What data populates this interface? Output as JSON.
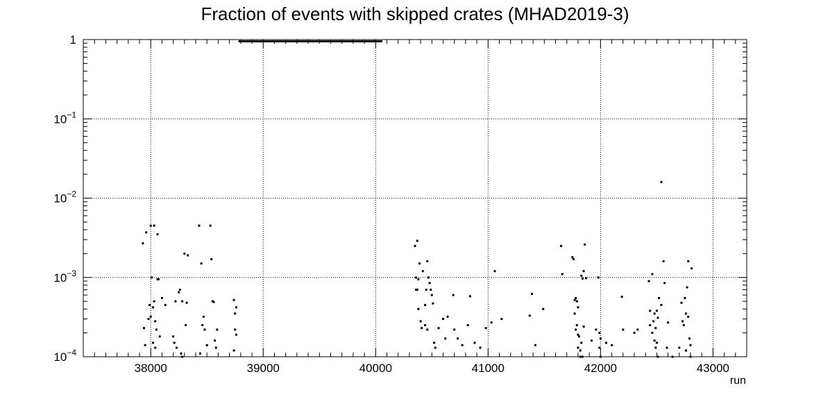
{
  "chart_data": {
    "type": "scatter",
    "title": "Fraction of events with skipped crates (MHAD2019-3)",
    "xlabel": "run",
    "ylabel": "",
    "xlim": [
      37400,
      43300
    ],
    "ylim": [
      0.0001,
      1
    ],
    "yscale": "log",
    "grid": true,
    "legend": "none",
    "xticks": [
      38000,
      39000,
      40000,
      41000,
      42000,
      43000
    ],
    "xtick_labels": [
      "38000",
      "39000",
      "40000",
      "41000",
      "42000",
      "43000"
    ],
    "yticks": [
      {
        "value": 1,
        "base": "1",
        "exp": ""
      },
      {
        "value": 0.1,
        "base": "10",
        "exp": "−1"
      },
      {
        "value": 0.01,
        "base": "10",
        "exp": "−2"
      },
      {
        "value": 0.001,
        "base": "10",
        "exp": "−3"
      },
      {
        "value": 0.0001,
        "base": "10",
        "exp": "−4"
      }
    ],
    "saturated_band": {
      "x_start": 38780,
      "x_end": 40060,
      "y": 0.95
    },
    "points": [
      [
        37930,
        0.0027
      ],
      [
        37960,
        0.0037
      ],
      [
        38000,
        0.0045
      ],
      [
        38030,
        0.0045
      ],
      [
        38060,
        0.0035
      ],
      [
        37940,
        0.00023
      ],
      [
        37950,
        0.00014
      ],
      [
        37980,
        0.0003
      ],
      [
        37990,
        0.00045
      ],
      [
        38000,
        0.00032
      ],
      [
        38010,
        0.001
      ],
      [
        38020,
        0.00042
      ],
      [
        38030,
        0.0005
      ],
      [
        38040,
        0.00028
      ],
      [
        38050,
        0.00022
      ],
      [
        38060,
        0.00095
      ],
      [
        38070,
        0.00095
      ],
      [
        38080,
        0.00018
      ],
      [
        38020,
        0.00015
      ],
      [
        38040,
        0.00013
      ],
      [
        38100,
        0.00055
      ],
      [
        38130,
        0.00045
      ],
      [
        38200,
        0.00018
      ],
      [
        38210,
        0.00015
      ],
      [
        38220,
        0.0005
      ],
      [
        38230,
        0.00013
      ],
      [
        38250,
        0.00065
      ],
      [
        38260,
        0.0007
      ],
      [
        38270,
        0.00011
      ],
      [
        38280,
        0.0005
      ],
      [
        38300,
        0.002
      ],
      [
        38320,
        0.00048
      ],
      [
        38330,
        0.0019
      ],
      [
        38310,
        0.00025
      ],
      [
        38280,
        0.0001
      ],
      [
        38430,
        0.0045
      ],
      [
        38450,
        0.0015
      ],
      [
        38460,
        0.00025
      ],
      [
        38470,
        0.00032
      ],
      [
        38480,
        0.00022
      ],
      [
        38440,
        0.00011
      ],
      [
        38500,
        0.00014
      ],
      [
        38530,
        0.0045
      ],
      [
        38540,
        0.0017
      ],
      [
        38550,
        0.0005
      ],
      [
        38560,
        0.00049
      ],
      [
        38570,
        0.00016
      ],
      [
        38580,
        0.00013
      ],
      [
        38590,
        0.00022
      ],
      [
        38740,
        0.00052
      ],
      [
        38750,
        0.00035
      ],
      [
        38760,
        0.00042
      ],
      [
        38750,
        0.00022
      ],
      [
        38760,
        0.00019
      ],
      [
        38740,
        0.00012
      ],
      [
        40350,
        0.0025
      ],
      [
        40370,
        0.0029
      ],
      [
        40360,
        0.001
      ],
      [
        40380,
        0.00095
      ],
      [
        40390,
        0.0015
      ],
      [
        40370,
        0.0007
      ],
      [
        40360,
        0.0007
      ],
      [
        40380,
        0.0004
      ],
      [
        40400,
        0.00028
      ],
      [
        40410,
        0.00023
      ],
      [
        40420,
        0.0012
      ],
      [
        40440,
        0.00045
      ],
      [
        40450,
        0.0007
      ],
      [
        40460,
        0.0016
      ],
      [
        40470,
        0.001
      ],
      [
        40480,
        0.00085
      ],
      [
        40490,
        0.0007
      ],
      [
        40500,
        0.0006
      ],
      [
        40510,
        0.00047
      ],
      [
        40460,
        0.00022
      ],
      [
        40440,
        0.00025
      ],
      [
        40520,
        0.00015
      ],
      [
        40530,
        0.00013
      ],
      [
        40560,
        0.00023
      ],
      [
        40600,
        0.0003
      ],
      [
        40620,
        0.00017
      ],
      [
        40640,
        0.00032
      ],
      [
        40690,
        0.0006
      ],
      [
        40700,
        0.00022
      ],
      [
        40730,
        0.00017
      ],
      [
        40770,
        0.00014
      ],
      [
        40820,
        0.00025
      ],
      [
        40840,
        0.00058
      ],
      [
        40880,
        0.00015
      ],
      [
        40930,
        0.00013
      ],
      [
        40980,
        0.00023
      ],
      [
        41030,
        0.00027
      ],
      [
        41060,
        0.0012
      ],
      [
        41120,
        0.0003
      ],
      [
        41370,
        0.00033
      ],
      [
        41390,
        0.00062
      ],
      [
        41420,
        0.00014
      ],
      [
        41490,
        0.0004
      ],
      [
        41650,
        0.0025
      ],
      [
        41660,
        0.0011
      ],
      [
        41750,
        0.0018
      ],
      [
        41760,
        0.0017
      ],
      [
        41770,
        0.00052
      ],
      [
        41780,
        0.00055
      ],
      [
        41790,
        0.0005
      ],
      [
        41800,
        0.00042
      ],
      [
        41770,
        0.00035
      ],
      [
        41790,
        0.00025
      ],
      [
        41780,
        0.00022
      ],
      [
        41800,
        0.00019
      ],
      [
        41810,
        0.00018
      ],
      [
        41820,
        0.0001
      ],
      [
        41830,
        0.00015
      ],
      [
        41840,
        0.0001
      ],
      [
        41850,
        0.00024
      ],
      [
        41800,
        0.00013
      ],
      [
        41820,
        0.00012
      ],
      [
        41830,
        0.00105
      ],
      [
        41840,
        0.00097
      ],
      [
        41860,
        0.0026
      ],
      [
        41870,
        0.00098
      ],
      [
        41850,
        0.0012
      ],
      [
        41920,
        0.00016
      ],
      [
        41960,
        0.00022
      ],
      [
        41980,
        0.001
      ],
      [
        41990,
        0.0002
      ],
      [
        42000,
        0.00017
      ],
      [
        41990,
        0.00013
      ],
      [
        42000,
        0.0001
      ],
      [
        42050,
        0.00015
      ],
      [
        42100,
        0.00014
      ],
      [
        42190,
        0.00057
      ],
      [
        42200,
        0.00022
      ],
      [
        42300,
        0.0002
      ],
      [
        42330,
        0.00022
      ],
      [
        42430,
        0.0009
      ],
      [
        42440,
        0.00038
      ],
      [
        42460,
        0.0011
      ],
      [
        42470,
        0.00028
      ],
      [
        42480,
        0.00035
      ],
      [
        42490,
        0.00023
      ],
      [
        42500,
        0.00038
      ],
      [
        42510,
        0.00031
      ],
      [
        42440,
        0.00025
      ],
      [
        42460,
        0.0002
      ],
      [
        42480,
        0.00016
      ],
      [
        42490,
        0.00013
      ],
      [
        42500,
        0.00015
      ],
      [
        42510,
        0.0001
      ],
      [
        42520,
        0.00055
      ],
      [
        42540,
        0.00045
      ],
      [
        42560,
        0.0016
      ],
      [
        42570,
        0.00085
      ],
      [
        42590,
        0.00013
      ],
      [
        42600,
        0.00027
      ],
      [
        42640,
        0.0001
      ],
      [
        42700,
        0.00013
      ],
      [
        42720,
        0.00048
      ],
      [
        42730,
        0.00028
      ],
      [
        42740,
        0.00025
      ],
      [
        42750,
        0.00055
      ],
      [
        42760,
        0.00035
      ],
      [
        42770,
        0.00075
      ],
      [
        42780,
        0.00032
      ],
      [
        42790,
        0.00017
      ],
      [
        42800,
        0.00014
      ],
      [
        42780,
        0.0016
      ],
      [
        42810,
        0.0013
      ],
      [
        42760,
        0.00012
      ],
      [
        42800,
        0.0001
      ],
      [
        42540,
        0.016
      ]
    ]
  }
}
